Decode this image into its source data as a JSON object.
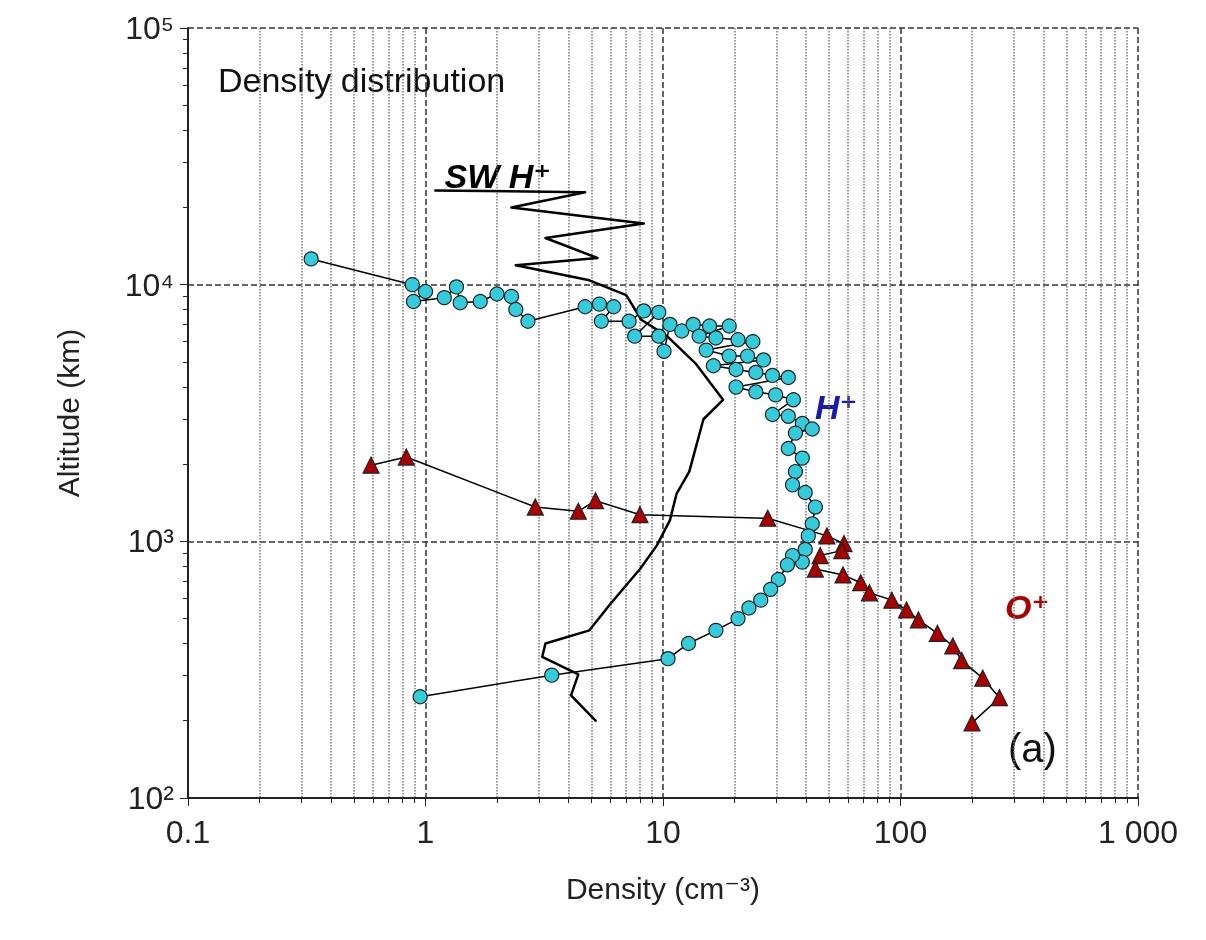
{
  "chart_data": {
    "type": "line",
    "title": "Density distribution",
    "xlabel": "Density (cm⁻³)",
    "ylabel": "Altitude (km)",
    "log": "xy",
    "grid": true,
    "legend": false,
    "xlim": [
      0.1,
      1000
    ],
    "ylim": [
      100,
      100000
    ],
    "xticks": [
      0.1,
      1,
      10,
      100,
      {
        "value": 1000,
        "label": "1 000"
      }
    ],
    "yticks": [
      {
        "value": 100,
        "label": "10²"
      },
      {
        "value": 1000,
        "label": "10³"
      },
      {
        "value": 10000,
        "label": "10⁴"
      },
      {
        "value": 100000,
        "label": "10⁵"
      }
    ],
    "annotations": [
      "(a)"
    ],
    "series": [
      {
        "name": "SW H⁺",
        "color": "#000000",
        "marker": "none",
        "x": [
          1.1,
          4.7,
          2.3,
          8.3,
          3.2,
          5.3,
          2.4,
          4.9,
          7.0,
          8.1,
          10.4,
          13.8,
          17.9,
          14.8,
          12.9,
          11.4,
          10.7,
          9.4,
          8.0,
          6.0,
          4.9,
          3.2,
          3.1,
          4.4,
          4.1,
          5.2
        ],
        "values": [
          23300,
          22900,
          20000,
          17300,
          15200,
          12700,
          11900,
          10400,
          9100,
          7300,
          6300,
          4900,
          3560,
          2990,
          1870,
          1530,
          1210,
          960,
          780,
          570,
          450,
          400,
          355,
          303,
          251,
          200
        ]
      },
      {
        "name": "H⁺",
        "color": "#33ccdd",
        "marker": "circle",
        "x": [
          0.33,
          0.88,
          1.0,
          0.89,
          1.2,
          1.35,
          1.4,
          1.7,
          2.0,
          2.3,
          2.4,
          2.7,
          4.7,
          5.4,
          6.2,
          5.5,
          7.2,
          8.3,
          9.6,
          7.6,
          9.6,
          10.1,
          10.7,
          12.0,
          13.4,
          15.7,
          19.0,
          14.2,
          16.7,
          20.7,
          23.9,
          15.2,
          19.0,
          22.7,
          26.5,
          16.3,
          20.3,
          24.6,
          28.9,
          33.7,
          20.3,
          24.6,
          29.8,
          35.4,
          28.9,
          33.7,
          38.6,
          42.5,
          36.1,
          33.7,
          38.6,
          36.1,
          35.1,
          39.7,
          43.8,
          42.5,
          40.9,
          39.7,
          38.6,
          35.1,
          33.4,
          30.6,
          28.4,
          25.8,
          23.0,
          20.7,
          16.7,
          12.8,
          10.5,
          3.4,
          0.95
        ],
        "values": [
          12600,
          10000,
          9400,
          8600,
          8900,
          9800,
          8500,
          8600,
          9200,
          9000,
          8000,
          7200,
          8200,
          8400,
          8200,
          7200,
          7200,
          7900,
          7800,
          6300,
          6300,
          5500,
          7000,
          6600,
          7000,
          6900,
          6900,
          6300,
          6200,
          6100,
          6000,
          5560,
          5270,
          5270,
          5090,
          4830,
          4670,
          4550,
          4430,
          4350,
          3990,
          3820,
          3720,
          3560,
          3120,
          3070,
          2880,
          2740,
          2640,
          2300,
          2110,
          1870,
          1660,
          1550,
          1360,
          1170,
          1050,
          930,
          830,
          880,
          810,
          710,
          650,
          590,
          550,
          500,
          450,
          400,
          349,
          301,
          248
        ]
      },
      {
        "name": "O⁺",
        "color": "#aa0000",
        "marker": "triangle",
        "x": [
          0.59,
          0.83,
          2.9,
          4.4,
          5.2,
          8.0,
          27.6,
          49,
          57.8,
          56.6,
          45.9,
          43.8,
          57.3,
          68,
          74,
          92,
          106,
          119,
          143,
          166,
          181,
          222,
          261,
          200
        ],
        "values": [
          1980,
          2130,
          1360,
          1310,
          1440,
          1270,
          1230,
          1050,
          980,
          920,
          880,
          780,
          740,
          690,
          630,
          590,
          540,
          494,
          438,
          391,
          343,
          293,
          246,
          196
        ]
      }
    ]
  }
}
